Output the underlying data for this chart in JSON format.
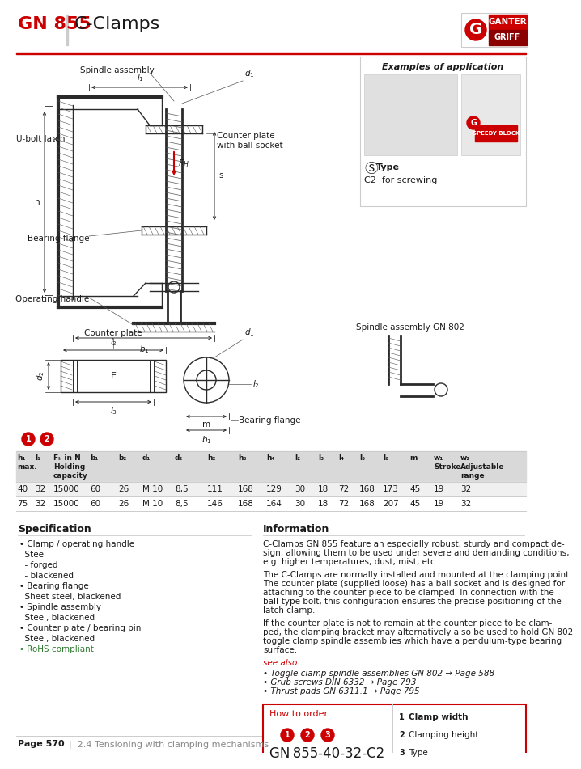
{
  "title_code": "GN 855",
  "title_name": "C-Clamps",
  "bg_color": "#ffffff",
  "red_color": "#cc0000",
  "table_header_bg": "#d9d9d9",
  "table_row1_bg": "#f0f0f0",
  "table_row2_bg": "#ffffff",
  "table_row1": [
    "40",
    "32",
    "15000",
    "60",
    "26",
    "M 10",
    "8,5",
    "111",
    "168",
    "129",
    "30",
    "18",
    "72",
    "168",
    "173",
    "45",
    "19",
    "32"
  ],
  "table_row2": [
    "75",
    "32",
    "15000",
    "60",
    "26",
    "M 10",
    "8,5",
    "146",
    "168",
    "164",
    "30",
    "18",
    "72",
    "168",
    "207",
    "45",
    "19",
    "32"
  ],
  "spec_title": "Specification",
  "spec_items": [
    "• Clamp / operating handle",
    "  Steel",
    "  - forged",
    "  - blackened",
    "• Bearing flange",
    "  Sheet steel, blackened",
    "• Spindle assembly",
    "  Steel, blackened",
    "• Counter plate / bearing pin",
    "  Steel, blackened",
    "• RoHS compliant"
  ],
  "info_title": "Information",
  "info_paragraphs": [
    "C-Clamps GN 855 feature an especially robust, sturdy and compact de-\nsign, allowing them to be used under severe and demanding conditions,\ne.g. higher temperatures, dust, mist, etc.",
    "The C-Clamps are normally installed and mounted at the clamping point.\nThe counter plate (supplied loose) has a ball socket and is designed for\nattaching to the counter piece to be clamped. In connection with the\nball-type bolt, this configuration ensures the precise positioning of the\nlatch clamp.",
    "If the counter plate is not to remain at the counter piece to be clam-\nped, the clamping bracket may alternatively also be used to hold GN 802\ntoggle clamp spindle assemblies which have a pendulum-type bearing\nsurface."
  ],
  "see_also_label": "see also...",
  "see_also_items": [
    "• Toggle clamp spindle assemblies GN 802 → Page 588",
    "• Grub screws DIN 6332 → Page 793",
    "• Thrust pads GN 6311.1 → Page 795"
  ],
  "how_to_order_label": "How to order",
  "how_to_order_code": "GN 855-40-32-C2",
  "how_to_order_items": [
    [
      "1",
      "Clamp width"
    ],
    [
      "2",
      "Clamping height"
    ],
    [
      "3",
      "Type"
    ]
  ],
  "examples_label": "Examples of application",
  "type_label": "Type",
  "type_value": "C2  for screwing",
  "spindle_label": "Spindle assembly GN 802",
  "footer": "Page 570",
  "footer_sub": "2.4 Tensioning with clamping mechanisms"
}
